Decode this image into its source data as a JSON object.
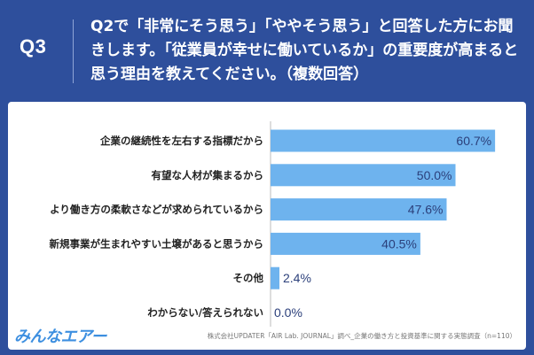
{
  "header": {
    "q_number": "Q3",
    "question": "Q2で「非常にそう思う」「ややそう思う」と回答した方にお聞きします。「従業員が幸せに働いているか」の重要度が高まると思う理由を教えてください。（複数回答）"
  },
  "footer": {
    "logo": "みんなエアー",
    "source": "株式会社UPDATER「AIR Lab. JOURNAL」調べ_企業の働き方と投資基準に関する実態調査（n=110）"
  },
  "colors": {
    "background": "#2e4f9c",
    "bar": "#6eb3ee",
    "value_text": "#2b3f7a"
  },
  "chart_data": {
    "type": "bar",
    "orientation": "horizontal",
    "categories": [
      "企業の継続性を左右する指標だから",
      "有望な人材が集まるから",
      "より働き方の柔軟さなどが求められているから",
      "新規事業が生まれやすい土壌があると思うから",
      "その他",
      "わからない/答えられない"
    ],
    "values": [
      60.7,
      50.0,
      47.6,
      40.5,
      2.4,
      0.0
    ],
    "value_labels": [
      "60.7%",
      "50.0%",
      "47.6%",
      "40.5%",
      "2.4%",
      "0.0%"
    ],
    "xlim": [
      0,
      100
    ],
    "grid": false,
    "legend": "none"
  }
}
